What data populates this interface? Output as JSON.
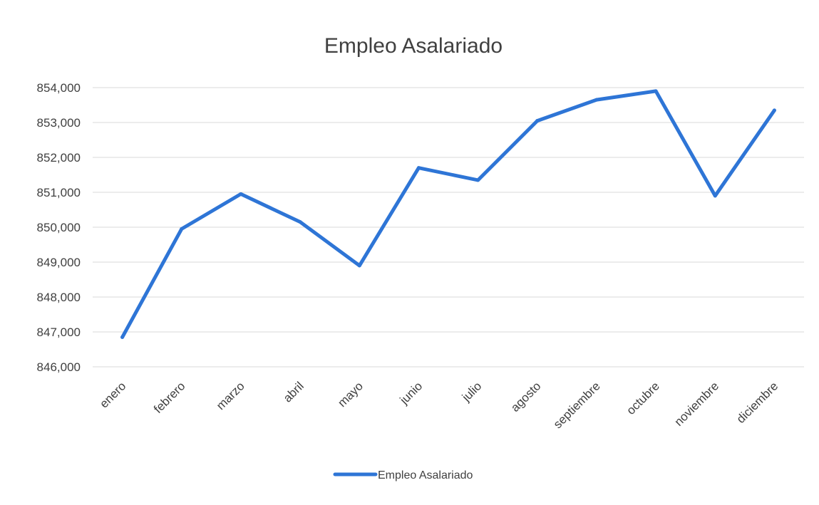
{
  "chart_data": {
    "type": "line",
    "title": "Empleo Asalariado",
    "xlabel": "",
    "ylabel": "",
    "categories": [
      "enero",
      "febrero",
      "marzo",
      "abril",
      "mayo",
      "junio",
      "julio",
      "agosto",
      "septiembre",
      "octubre",
      "noviembre",
      "diciembre"
    ],
    "series": [
      {
        "name": "Empleo Asalariado",
        "color": "#2e75d6",
        "values": [
          846850,
          849950,
          850950,
          850150,
          848900,
          851700,
          851350,
          853050,
          853650,
          853900,
          850900,
          853350
        ]
      }
    ],
    "ylim": [
      846000,
      854000
    ],
    "yticks": [
      854000,
      853000,
      852000,
      851000,
      850000,
      849000,
      848000,
      847000,
      846000
    ],
    "ytick_labels": [
      "854,000",
      "853,000",
      "852,000",
      "851,000",
      "850,000",
      "849,000",
      "848,000",
      "847,000",
      "846,000"
    ],
    "grid": true,
    "legend_position": "bottom"
  }
}
